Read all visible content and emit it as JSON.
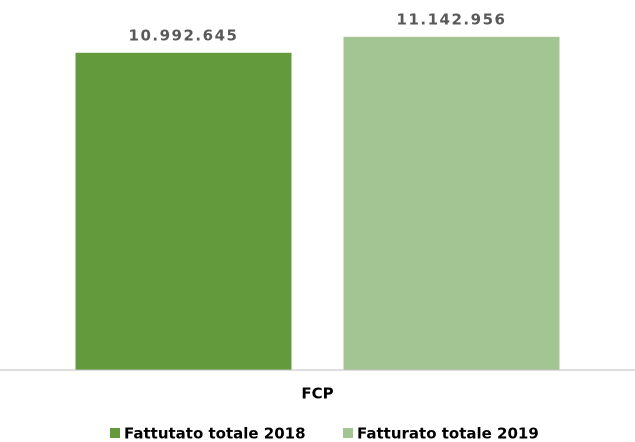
{
  "chart_data": {
    "type": "bar",
    "categories": [
      "FCP"
    ],
    "series": [
      {
        "name": "Fattutato totale 2018",
        "color": "#639a3b",
        "values": [
          10992645
        ],
        "value_labels": [
          "10.992.645"
        ]
      },
      {
        "name": "Fatturato totale 2019",
        "color": "#a3c593",
        "values": [
          11142956
        ],
        "value_labels": [
          "11.142.956"
        ]
      }
    ],
    "ylim": [
      8000000,
      11500000
    ],
    "legend": "bottom"
  }
}
